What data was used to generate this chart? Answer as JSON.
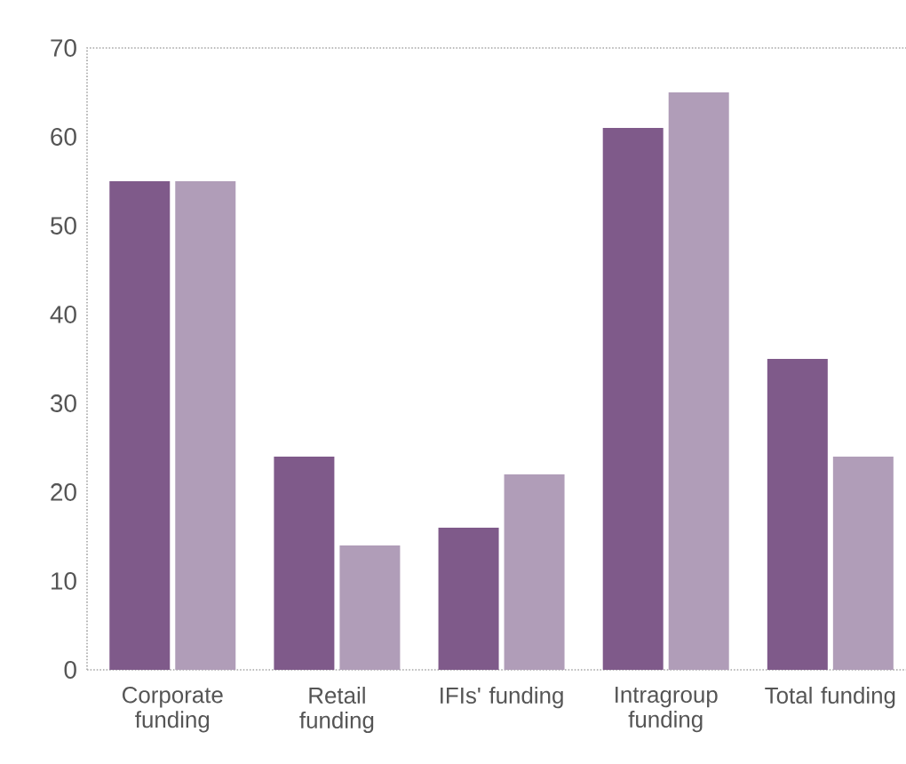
{
  "chart_data": {
    "type": "bar",
    "categories": [
      "Corporate funding",
      "Retail funding",
      "IFIs' funding",
      "Intragroup funding",
      "Total funding"
    ],
    "series": [
      {
        "color": "#7f5a8a",
        "values": [
          55,
          24,
          16,
          61,
          35
        ]
      },
      {
        "color": "#b09db8",
        "values": [
          55,
          14,
          22,
          65,
          24
        ]
      }
    ],
    "ylim": [
      0,
      70
    ],
    "yticks": [
      0,
      10,
      20,
      30,
      40,
      50,
      60,
      70
    ]
  }
}
